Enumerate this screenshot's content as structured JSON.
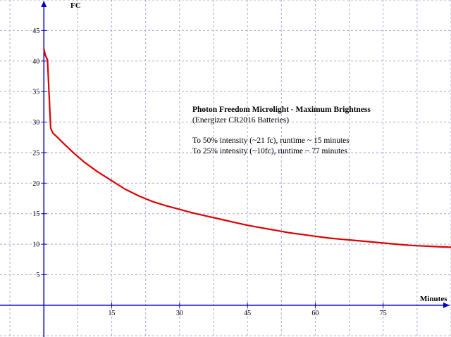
{
  "chart_data": {
    "type": "line",
    "xlabel": "Minutes",
    "ylabel": "FC",
    "xlim": [
      -9.7,
      90
    ],
    "ylim": [
      -5.2,
      50
    ],
    "x_ticks": [
      15,
      30,
      45,
      60,
      75
    ],
    "y_ticks": [
      5,
      10,
      15,
      20,
      25,
      30,
      35,
      40,
      45
    ],
    "grid": true,
    "series": [
      {
        "color": "#dd0000",
        "x": [
          0,
          0.3,
          0.8,
          1.5,
          2.0,
          3.0,
          4.5,
          6.5,
          9,
          12,
          15,
          18,
          21,
          24,
          27,
          30,
          33,
          36,
          39,
          42,
          45,
          48,
          51,
          54,
          57,
          60,
          63,
          66,
          69,
          72,
          75,
          78,
          81,
          84,
          87,
          90
        ],
        "y": [
          42,
          41.0,
          40.2,
          29.0,
          28.2,
          27.5,
          26.4,
          25.0,
          23.4,
          21.8,
          20.4,
          19.0,
          17.9,
          17.0,
          16.3,
          15.7,
          15.1,
          14.6,
          14.1,
          13.6,
          13.1,
          12.7,
          12.3,
          11.9,
          11.6,
          11.3,
          11.0,
          10.8,
          10.6,
          10.4,
          10.2,
          10.0,
          9.8,
          9.7,
          9.6,
          9.5
        ]
      }
    ]
  },
  "annotation": {
    "title": "Photon Freedom Microlight - Maximum Brightness",
    "subtitle": "(Energizer CR2016 Batteries)",
    "line1": "To 50% intensity (~21 fc), runtime ~ 15 minutes",
    "line2": "To 25% intensity (~10fc), runtime ~ 77 minutes"
  },
  "colors": {
    "axis": "#0000cc",
    "grid": "#aaaadd",
    "line": "#dd0000"
  }
}
